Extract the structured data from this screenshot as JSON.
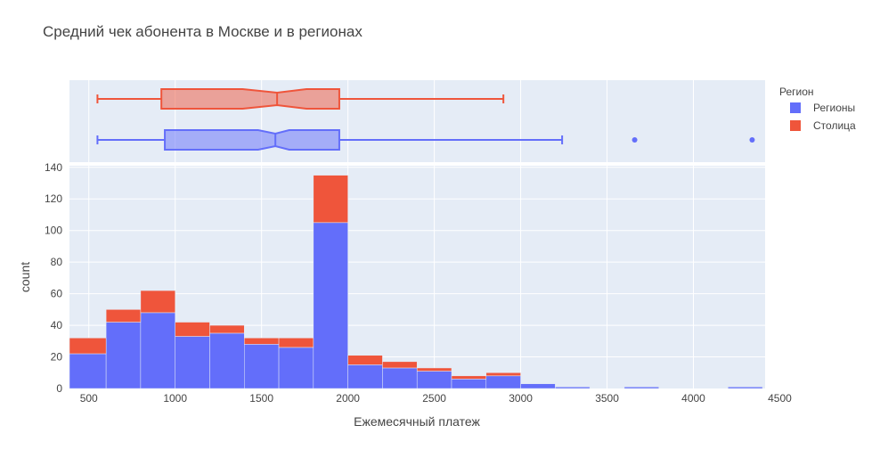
{
  "chart_data": {
    "type": "bar",
    "title": "Средний чек абонента в Москве и в регионах",
    "xlabel": "Ежемесячный платеж",
    "ylabel": "count",
    "xlim": [
      388,
      4415
    ],
    "ylim": [
      0,
      141
    ],
    "x_ticks": [
      500,
      1000,
      1500,
      2000,
      2500,
      3000,
      3500,
      4000,
      4500
    ],
    "y_ticks": [
      0,
      20,
      40,
      60,
      80,
      100,
      120,
      140
    ],
    "legend": {
      "title": "Регион",
      "placement": "right",
      "entries": [
        {
          "name": "Регионы",
          "color": "#636efa"
        },
        {
          "name": "Столица",
          "color": "#ef553b"
        }
      ]
    },
    "barmode": "stack",
    "bin_width": 100,
    "histogram_series": [
      {
        "name": "Регионы",
        "color": "#636efa",
        "bins": [
          {
            "x0": 388,
            "x1": 600,
            "count": 22
          },
          {
            "x0": 600,
            "x1": 800,
            "count": 42
          },
          {
            "x0": 800,
            "x1": 1000,
            "count": 48
          },
          {
            "x0": 1000,
            "x1": 1200,
            "count": 33
          },
          {
            "x0": 1200,
            "x1": 1400,
            "count": 35
          },
          {
            "x0": 1400,
            "x1": 1600,
            "count": 28
          },
          {
            "x0": 1600,
            "x1": 1800,
            "count": 26
          },
          {
            "x0": 1800,
            "x1": 2000,
            "count": 105
          },
          {
            "x0": 2000,
            "x1": 2200,
            "count": 15
          },
          {
            "x0": 2200,
            "x1": 2400,
            "count": 13
          },
          {
            "x0": 2400,
            "x1": 2600,
            "count": 11
          },
          {
            "x0": 2600,
            "x1": 2800,
            "count": 6
          },
          {
            "x0": 2800,
            "x1": 3000,
            "count": 8
          },
          {
            "x0": 3000,
            "x1": 3200,
            "count": 3
          },
          {
            "x0": 3200,
            "x1": 3400,
            "count": 1
          },
          {
            "x0": 3600,
            "x1": 3800,
            "count": 1
          },
          {
            "x0": 4200,
            "x1": 4400,
            "count": 1
          }
        ]
      },
      {
        "name": "Столица",
        "color": "#ef553b",
        "bins": [
          {
            "x0": 388,
            "x1": 600,
            "count": 10
          },
          {
            "x0": 600,
            "x1": 800,
            "count": 8
          },
          {
            "x0": 800,
            "x1": 1000,
            "count": 14
          },
          {
            "x0": 1000,
            "x1": 1200,
            "count": 9
          },
          {
            "x0": 1200,
            "x1": 1400,
            "count": 5
          },
          {
            "x0": 1400,
            "x1": 1600,
            "count": 4
          },
          {
            "x0": 1600,
            "x1": 1800,
            "count": 6
          },
          {
            "x0": 1800,
            "x1": 2000,
            "count": 30
          },
          {
            "x0": 2000,
            "x1": 2200,
            "count": 6
          },
          {
            "x0": 2200,
            "x1": 2400,
            "count": 4
          },
          {
            "x0": 2400,
            "x1": 2600,
            "count": 2
          },
          {
            "x0": 2600,
            "x1": 2800,
            "count": 2
          },
          {
            "x0": 2800,
            "x1": 3000,
            "count": 2
          }
        ]
      }
    ],
    "box_series": [
      {
        "name": "Столица",
        "color": "#ef553b",
        "min": 550,
        "q1": 920,
        "median": 1590,
        "q3": 1950,
        "max": 2900,
        "notch_low": 1390,
        "notch_high": 1760,
        "outliers": []
      },
      {
        "name": "Регионы",
        "color": "#636efa",
        "min": 550,
        "q1": 940,
        "median": 1580,
        "q3": 1950,
        "max": 3240,
        "notch_low": 1480,
        "notch_high": 1660,
        "outliers": [
          3660,
          4340
        ]
      }
    ]
  }
}
